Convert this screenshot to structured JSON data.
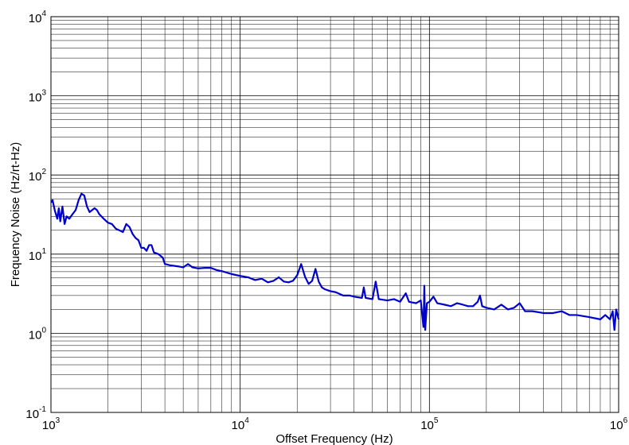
{
  "chart_data": {
    "type": "line",
    "xlabel": "Offset Frequency (Hz)",
    "ylabel": "Frequency Noise (Hz/rt-Hz)",
    "xscale": "log",
    "yscale": "log",
    "xlim": [
      1000,
      1000000
    ],
    "ylim": [
      0.1,
      10000
    ],
    "grid": true,
    "x_ticks": [
      {
        "base": "10",
        "exp": "3"
      },
      {
        "base": "10",
        "exp": "4"
      },
      {
        "base": "10",
        "exp": "5"
      },
      {
        "base": "10",
        "exp": "6"
      }
    ],
    "y_ticks": [
      {
        "base": "10",
        "exp": "-1"
      },
      {
        "base": "10",
        "exp": "0"
      },
      {
        "base": "10",
        "exp": "1"
      },
      {
        "base": "10",
        "exp": "2"
      },
      {
        "base": "10",
        "exp": "3"
      },
      {
        "base": "10",
        "exp": "4"
      }
    ],
    "series": [
      {
        "color": "#0000cc",
        "points": [
          [
            1000,
            45
          ],
          [
            1020,
            48
          ],
          [
            1050,
            35
          ],
          [
            1080,
            28
          ],
          [
            1100,
            38
          ],
          [
            1120,
            26
          ],
          [
            1150,
            40
          ],
          [
            1180,
            24
          ],
          [
            1210,
            30
          ],
          [
            1250,
            28
          ],
          [
            1300,
            32
          ],
          [
            1350,
            36
          ],
          [
            1400,
            48
          ],
          [
            1450,
            58
          ],
          [
            1500,
            55
          ],
          [
            1550,
            40
          ],
          [
            1600,
            34
          ],
          [
            1650,
            36
          ],
          [
            1700,
            38
          ],
          [
            1750,
            36
          ],
          [
            1800,
            32
          ],
          [
            1900,
            28
          ],
          [
            2000,
            25
          ],
          [
            2100,
            24
          ],
          [
            2200,
            21
          ],
          [
            2300,
            20
          ],
          [
            2400,
            19
          ],
          [
            2500,
            24
          ],
          [
            2600,
            22
          ],
          [
            2700,
            18
          ],
          [
            2800,
            16
          ],
          [
            2900,
            15
          ],
          [
            3000,
            12
          ],
          [
            3100,
            12
          ],
          [
            3200,
            11
          ],
          [
            3300,
            13
          ],
          [
            3400,
            13
          ],
          [
            3500,
            10.5
          ],
          [
            3700,
            10
          ],
          [
            3900,
            9
          ],
          [
            4000,
            7.5
          ],
          [
            4300,
            7.2
          ],
          [
            4700,
            7.0
          ],
          [
            5000,
            6.8
          ],
          [
            5300,
            7.5
          ],
          [
            5600,
            6.8
          ],
          [
            6000,
            6.6
          ],
          [
            6500,
            6.7
          ],
          [
            7000,
            6.7
          ],
          [
            7500,
            6.3
          ],
          [
            8000,
            6.1
          ],
          [
            9000,
            5.6
          ],
          [
            10000,
            5.3
          ],
          [
            11000,
            5.1
          ],
          [
            12000,
            4.7
          ],
          [
            13000,
            4.9
          ],
          [
            14000,
            4.4
          ],
          [
            15000,
            4.6
          ],
          [
            16000,
            5.1
          ],
          [
            17000,
            4.5
          ],
          [
            18000,
            4.4
          ],
          [
            19000,
            4.6
          ],
          [
            20000,
            5.4
          ],
          [
            21000,
            7.5
          ],
          [
            22000,
            5.2
          ],
          [
            23000,
            4.2
          ],
          [
            24000,
            4.6
          ],
          [
            25000,
            6.5
          ],
          [
            26000,
            4.5
          ],
          [
            27000,
            3.8
          ],
          [
            28000,
            3.6
          ],
          [
            30000,
            3.4
          ],
          [
            32000,
            3.3
          ],
          [
            35000,
            3.0
          ],
          [
            38000,
            3.0
          ],
          [
            40000,
            2.9
          ],
          [
            44000,
            2.8
          ],
          [
            45000,
            3.8
          ],
          [
            46000,
            2.8
          ],
          [
            50000,
            2.7
          ],
          [
            52000,
            4.5
          ],
          [
            54000,
            2.7
          ],
          [
            60000,
            2.6
          ],
          [
            65000,
            2.7
          ],
          [
            70000,
            2.5
          ],
          [
            75000,
            3.2
          ],
          [
            78000,
            2.5
          ],
          [
            85000,
            2.4
          ],
          [
            90000,
            2.6
          ],
          [
            93000,
            1.2
          ],
          [
            94000,
            4.0
          ],
          [
            95000,
            1.1
          ],
          [
            97000,
            2.4
          ],
          [
            100000,
            2.5
          ],
          [
            105000,
            2.9
          ],
          [
            110000,
            2.4
          ],
          [
            120000,
            2.3
          ],
          [
            130000,
            2.2
          ],
          [
            140000,
            2.4
          ],
          [
            150000,
            2.3
          ],
          [
            160000,
            2.2
          ],
          [
            170000,
            2.2
          ],
          [
            180000,
            2.5
          ],
          [
            185000,
            3.0
          ],
          [
            190000,
            2.2
          ],
          [
            200000,
            2.1
          ],
          [
            220000,
            2.0
          ],
          [
            240000,
            2.3
          ],
          [
            260000,
            2.0
          ],
          [
            280000,
            2.1
          ],
          [
            300000,
            2.4
          ],
          [
            320000,
            1.9
          ],
          [
            350000,
            1.9
          ],
          [
            400000,
            1.8
          ],
          [
            450000,
            1.8
          ],
          [
            500000,
            1.9
          ],
          [
            550000,
            1.7
          ],
          [
            600000,
            1.7
          ],
          [
            700000,
            1.6
          ],
          [
            800000,
            1.5
          ],
          [
            850000,
            1.7
          ],
          [
            900000,
            1.5
          ],
          [
            930000,
            1.9
          ],
          [
            950000,
            1.1
          ],
          [
            970000,
            2.0
          ],
          [
            1000000,
            1.5
          ]
        ]
      }
    ]
  }
}
